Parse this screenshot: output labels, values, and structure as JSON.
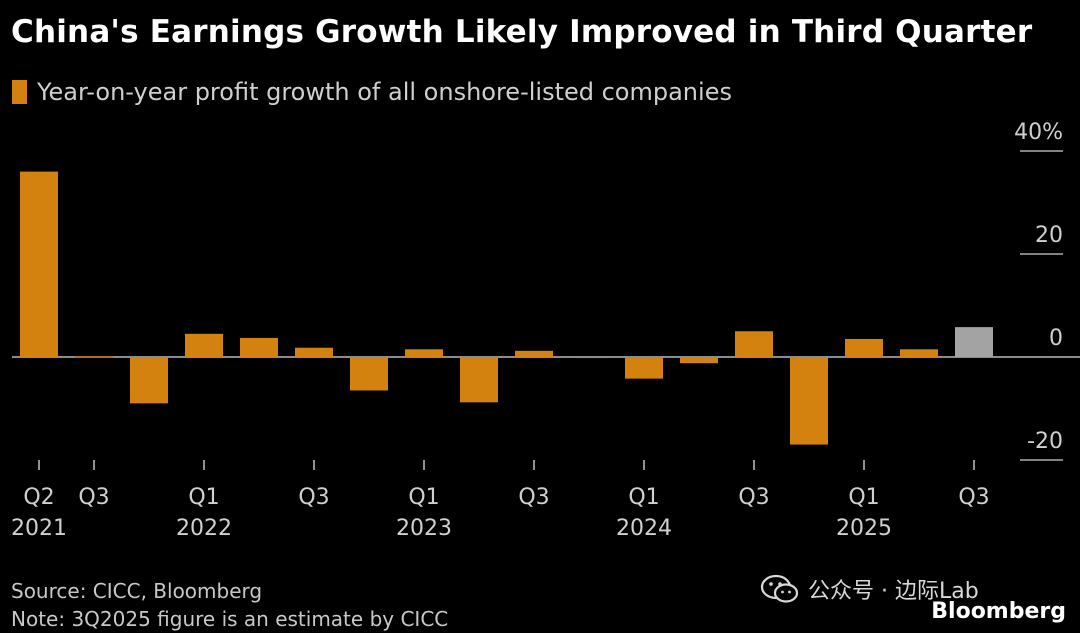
{
  "title": "China's Earnings Growth Likely Improved in Third Quarter",
  "legend": {
    "label": "Year-on-year profit growth of all onshore-listed companies",
    "color": "#d4820f"
  },
  "footer": {
    "source": "Source: CICC, Bloomberg",
    "note": "Note: 3Q2025 figure is an estimate by CICC"
  },
  "watermark": {
    "text": "公众号 · 边际Lab",
    "icon": "wechat-icon"
  },
  "brand": "Bloomberg",
  "chart_data": {
    "type": "bar",
    "categories": [
      "2Q2021",
      "3Q2021",
      "4Q2021",
      "1Q2022",
      "2Q2022",
      "3Q2022",
      "4Q2022",
      "1Q2023",
      "2Q2023",
      "3Q2023",
      "4Q2023",
      "1Q2024",
      "2Q2024",
      "3Q2024",
      "4Q2024",
      "1Q2025",
      "2Q2025",
      "3Q2025"
    ],
    "values": [
      36,
      0,
      -9,
      4.5,
      3.7,
      1.8,
      -6.5,
      1.5,
      -8.8,
      1.2,
      -0.2,
      -4.2,
      -1.2,
      5,
      -17,
      3.5,
      1.5,
      5.8
    ],
    "estimate_index": 17,
    "colors": {
      "actual": "#d4820f",
      "estimate": "#a3a3a3"
    },
    "ylim": [
      -20,
      40
    ],
    "yticks": [
      {
        "value": 40,
        "label": "40%"
      },
      {
        "value": 20,
        "label": "20"
      },
      {
        "value": 0,
        "label": "0"
      },
      {
        "value": -20,
        "label": "-20"
      }
    ],
    "xticks": [
      {
        "index": 0,
        "quarter": "Q2",
        "year": "2021"
      },
      {
        "index": 1,
        "quarter": "Q3",
        "year": ""
      },
      {
        "index": 3,
        "quarter": "Q1",
        "year": "2022"
      },
      {
        "index": 5,
        "quarter": "Q3",
        "year": ""
      },
      {
        "index": 7,
        "quarter": "Q1",
        "year": "2023"
      },
      {
        "index": 9,
        "quarter": "Q3",
        "year": ""
      },
      {
        "index": 11,
        "quarter": "Q1",
        "year": "2024"
      },
      {
        "index": 13,
        "quarter": "Q3",
        "year": ""
      },
      {
        "index": 15,
        "quarter": "Q1",
        "year": "2025"
      },
      {
        "index": 17,
        "quarter": "Q3",
        "year": ""
      }
    ],
    "title": "China's Earnings Growth Likely Improved in Third Quarter",
    "xlabel": "",
    "ylabel": ""
  }
}
